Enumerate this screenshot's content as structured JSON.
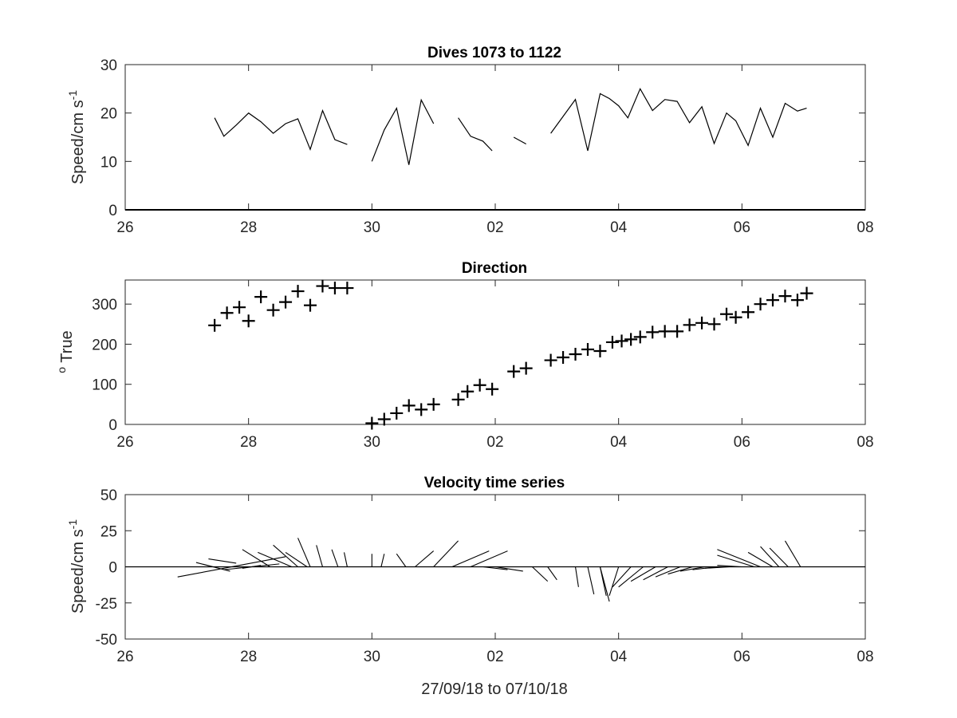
{
  "figure": {
    "xlabel": "27/09/18 to 07/10/18",
    "x_ticks": [
      "26",
      "28",
      "30",
      "02",
      "04",
      "06",
      "08"
    ],
    "colors": {
      "line": "#000000",
      "axis": "#262626",
      "background": "#ffffff"
    }
  },
  "chart_data": [
    {
      "type": "line",
      "title": "Dives 1073 to 1122",
      "ylabel": "Speed/cm s",
      "ylabel_superscript": "-1",
      "xlim": [
        0,
        12
      ],
      "ylim": [
        0,
        30
      ],
      "y_ticks": [
        0,
        10,
        20,
        30
      ],
      "x_ticks": [
        "26",
        "28",
        "30",
        "02",
        "04",
        "06",
        "08"
      ],
      "baseline": 0,
      "segments": [
        [
          [
            1.45,
            19
          ],
          [
            1.6,
            15.2
          ],
          [
            1.8,
            17.5
          ],
          [
            2.0,
            20
          ],
          [
            2.2,
            18.2
          ],
          [
            2.4,
            15.8
          ],
          [
            2.6,
            17.8
          ],
          [
            2.8,
            18.8
          ],
          [
            3.0,
            12.5
          ],
          [
            3.2,
            20.5
          ],
          [
            3.4,
            14.5
          ],
          [
            3.6,
            13.5
          ]
        ],
        [
          [
            4.0,
            10
          ],
          [
            4.2,
            16.5
          ],
          [
            4.4,
            21
          ],
          [
            4.6,
            9.3
          ],
          [
            4.8,
            22.7
          ],
          [
            5.0,
            17.8
          ]
        ],
        [
          [
            5.4,
            19
          ],
          [
            5.6,
            15.2
          ],
          [
            5.8,
            14.2
          ],
          [
            5.95,
            12.2
          ]
        ],
        [
          [
            6.3,
            15
          ],
          [
            6.5,
            13.6
          ]
        ],
        [
          [
            6.9,
            15.8
          ],
          [
            7.1,
            19.3
          ],
          [
            7.3,
            22.8
          ],
          [
            7.5,
            12.2
          ],
          [
            7.7,
            24
          ],
          [
            7.85,
            23
          ],
          [
            8.0,
            21.5
          ],
          [
            8.15,
            19
          ],
          [
            8.35,
            25
          ],
          [
            8.55,
            20.5
          ],
          [
            8.75,
            22.8
          ],
          [
            8.95,
            22.4
          ],
          [
            9.15,
            18
          ],
          [
            9.35,
            21.3
          ],
          [
            9.55,
            13.7
          ],
          [
            9.75,
            20
          ],
          [
            9.9,
            18.4
          ],
          [
            10.1,
            13.3
          ],
          [
            10.3,
            21
          ],
          [
            10.5,
            15
          ],
          [
            10.7,
            22
          ],
          [
            10.9,
            20.4
          ],
          [
            11.05,
            21
          ]
        ]
      ]
    },
    {
      "type": "scatter",
      "title": "Direction",
      "ylabel": "True",
      "ylabel_superscript_prefix": "o",
      "marker": "+",
      "xlim": [
        0,
        12
      ],
      "ylim": [
        0,
        360
      ],
      "y_ticks": [
        0,
        100,
        200,
        300
      ],
      "x_ticks": [
        "26",
        "28",
        "30",
        "02",
        "04",
        "06",
        "08"
      ],
      "points": [
        [
          1.45,
          247
        ],
        [
          1.65,
          278
        ],
        [
          1.85,
          292
        ],
        [
          2.0,
          258
        ],
        [
          2.2,
          318
        ],
        [
          2.4,
          285
        ],
        [
          2.6,
          305
        ],
        [
          2.8,
          332
        ],
        [
          3.0,
          297
        ],
        [
          3.2,
          345
        ],
        [
          3.4,
          340
        ],
        [
          3.6,
          340
        ],
        [
          4.0,
          3
        ],
        [
          4.2,
          13
        ],
        [
          4.4,
          28
        ],
        [
          4.6,
          47
        ],
        [
          4.8,
          37
        ],
        [
          5.0,
          50
        ],
        [
          5.4,
          62
        ],
        [
          5.55,
          82
        ],
        [
          5.75,
          98
        ],
        [
          5.95,
          88
        ],
        [
          6.3,
          132
        ],
        [
          6.5,
          140
        ],
        [
          6.9,
          160
        ],
        [
          7.1,
          167
        ],
        [
          7.3,
          175
        ],
        [
          7.5,
          187
        ],
        [
          7.7,
          183
        ],
        [
          7.9,
          205
        ],
        [
          8.05,
          208
        ],
        [
          8.2,
          212
        ],
        [
          8.35,
          218
        ],
        [
          8.55,
          230
        ],
        [
          8.75,
          232
        ],
        [
          8.95,
          232
        ],
        [
          9.15,
          248
        ],
        [
          9.35,
          253
        ],
        [
          9.55,
          250
        ],
        [
          9.75,
          275
        ],
        [
          9.9,
          267
        ],
        [
          10.1,
          280
        ],
        [
          10.3,
          300
        ],
        [
          10.5,
          310
        ],
        [
          10.7,
          320
        ],
        [
          10.9,
          310
        ],
        [
          11.05,
          327
        ]
      ]
    },
    {
      "type": "quiver",
      "title": "Velocity time series",
      "ylabel": "Speed/cm s",
      "ylabel_superscript": "-1",
      "xlim": [
        0,
        12
      ],
      "ylim": [
        -50,
        50
      ],
      "y_ticks": [
        50,
        25,
        0,
        -25,
        -50
      ],
      "x_ticks": [
        "26",
        "28",
        "30",
        "02",
        "04",
        "06",
        "08"
      ],
      "baseline": 0,
      "vectors": [
        [
          0.85,
          -7,
          2.6,
          7
        ],
        [
          1.15,
          3,
          1.7,
          -3
        ],
        [
          1.35,
          5.5,
          1.8,
          2.5
        ],
        [
          1.6,
          -2,
          2.5,
          2
        ],
        [
          1.9,
          -1,
          2.2,
          1
        ],
        [
          1.9,
          12,
          2.35,
          0
        ],
        [
          2.15,
          10,
          2.7,
          0
        ],
        [
          2.4,
          15,
          2.8,
          0
        ],
        [
          2.6,
          10,
          2.95,
          0
        ],
        [
          2.8,
          20,
          3.0,
          0
        ],
        [
          3.1,
          15,
          3.2,
          0
        ],
        [
          3.35,
          12,
          3.45,
          0
        ],
        [
          3.55,
          10,
          3.6,
          0
        ],
        [
          4.0,
          9,
          4.0,
          0
        ],
        [
          4.15,
          0,
          4.2,
          9
        ],
        [
          4.4,
          9,
          4.55,
          0
        ],
        [
          4.7,
          0,
          5.0,
          11
        ],
        [
          5.0,
          0,
          5.4,
          18
        ],
        [
          5.3,
          0,
          5.9,
          11
        ],
        [
          5.6,
          0,
          6.2,
          11
        ],
        [
          5.8,
          0,
          6.2,
          -2
        ],
        [
          6.0,
          0,
          6.45,
          -3
        ],
        [
          6.6,
          0,
          6.85,
          -10
        ],
        [
          6.85,
          0,
          7.0,
          -9
        ],
        [
          7.3,
          0,
          7.35,
          -14
        ],
        [
          7.5,
          0,
          7.6,
          -19
        ],
        [
          7.7,
          0,
          7.8,
          -20
        ],
        [
          7.7,
          0,
          7.85,
          -24
        ],
        [
          8.0,
          0,
          7.85,
          -20
        ],
        [
          8.2,
          0,
          7.9,
          -14
        ],
        [
          8.4,
          0,
          8.0,
          -14
        ],
        [
          8.6,
          0,
          8.2,
          -10
        ],
        [
          8.8,
          0,
          8.4,
          -9
        ],
        [
          9.0,
          0,
          8.6,
          -7
        ],
        [
          9.2,
          0,
          8.8,
          -5
        ],
        [
          9.4,
          0,
          9.0,
          -3
        ],
        [
          9.6,
          0,
          9.2,
          -2
        ],
        [
          9.8,
          0,
          9.4,
          -1
        ],
        [
          10.0,
          0,
          9.6,
          1
        ],
        [
          10.2,
          0,
          9.6,
          8
        ],
        [
          10.3,
          0,
          9.6,
          12
        ],
        [
          10.5,
          0,
          10.1,
          10
        ],
        [
          10.6,
          0,
          10.3,
          14
        ],
        [
          10.75,
          0,
          10.45,
          13
        ],
        [
          10.95,
          0,
          10.7,
          18
        ]
      ]
    }
  ]
}
